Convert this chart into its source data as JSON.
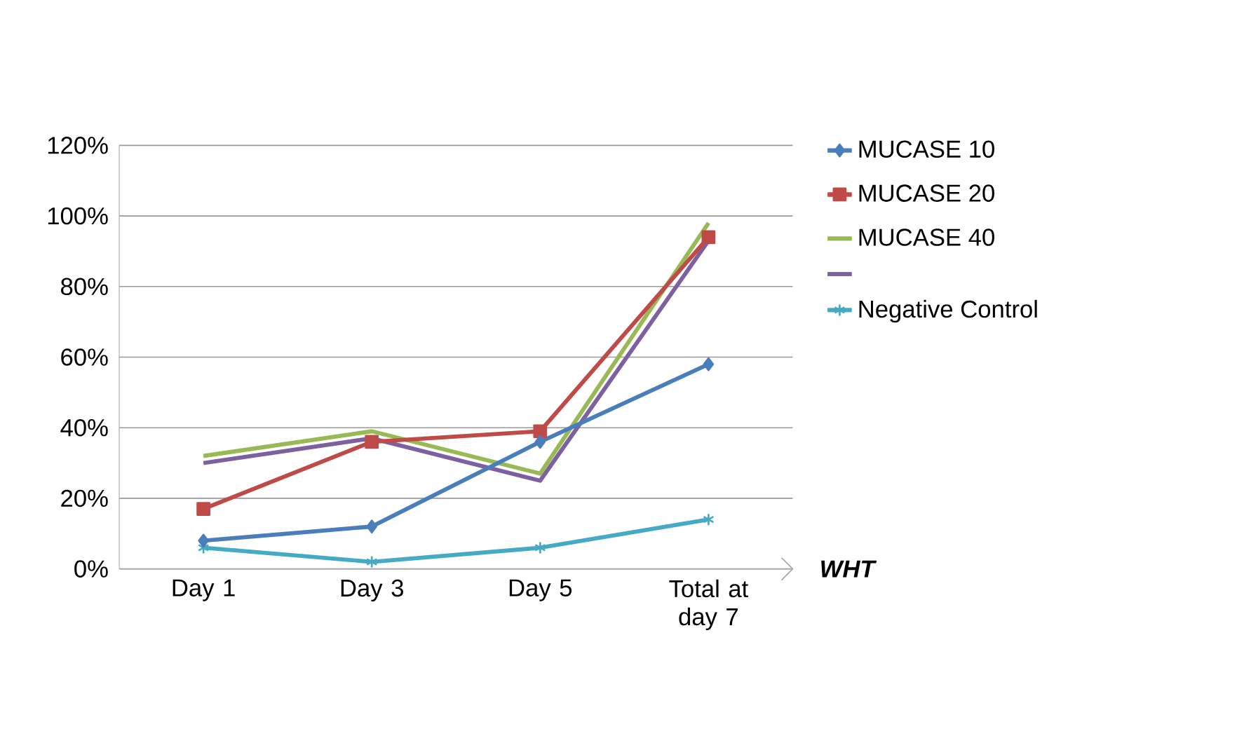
{
  "chart_data": {
    "type": "line",
    "xlabel": "WHT",
    "categories": [
      "Day 1",
      "Day 3",
      "Day 5",
      "Total at day 7"
    ],
    "series": [
      {
        "name": "MUCASE 10",
        "color": "#4a7ebb",
        "marker": "diamond",
        "values": [
          8,
          12,
          36,
          58
        ]
      },
      {
        "name": "MUCASE 20",
        "color": "#be4b48",
        "marker": "square",
        "values": [
          17,
          36,
          39,
          94
        ]
      },
      {
        "name": "MUCASE 40",
        "color": "#98b954",
        "marker": "none",
        "values": [
          32,
          39,
          27,
          98
        ]
      },
      {
        "color": "#7d60a0",
        "marker": "none",
        "values": [
          30,
          37,
          25,
          93
        ]
      },
      {
        "name": "Negative Control",
        "color": "#46aac5",
        "marker": "cross",
        "values": [
          6,
          2,
          6,
          14
        ]
      }
    ],
    "ylim": [
      0,
      120
    ],
    "yticks": [
      {
        "value": 0,
        "label": "0%"
      },
      {
        "value": 20,
        "label": "20%"
      },
      {
        "value": 40,
        "label": "40%"
      },
      {
        "value": 60,
        "label": "60%"
      },
      {
        "value": 80,
        "label": "80%"
      },
      {
        "value": 100,
        "label": "100%"
      },
      {
        "value": 120,
        "label": "120%"
      }
    ],
    "grid": "y",
    "legend": "right",
    "line_style": "solid"
  }
}
